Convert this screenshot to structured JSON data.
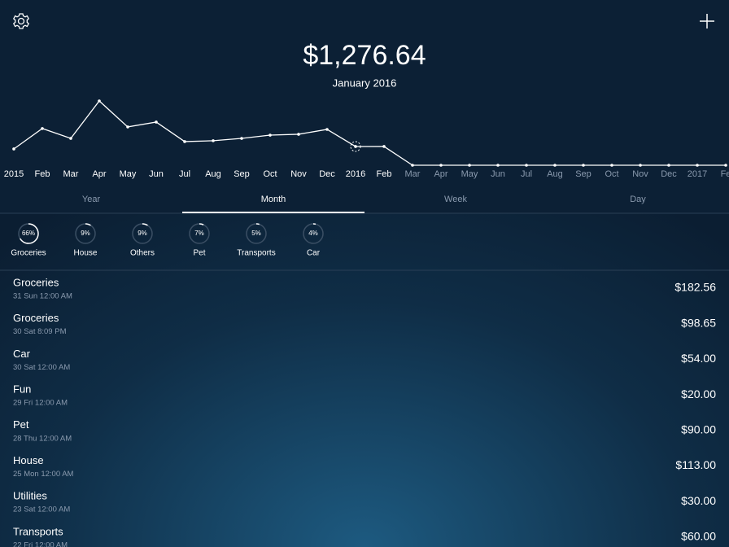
{
  "header": {
    "total": "$1,276.64",
    "period": "January 2016"
  },
  "timeline": {
    "type": "line",
    "categories": [
      "2015",
      "Feb",
      "Mar",
      "Apr",
      "May",
      "Jun",
      "Jul",
      "Aug",
      "Sep",
      "Oct",
      "Nov",
      "Dec",
      "2016",
      "Feb",
      "Mar",
      "Apr",
      "May",
      "Jun",
      "Jul",
      "Aug",
      "Sep",
      "Oct",
      "Nov",
      "Dec",
      "2017",
      "Fe"
    ],
    "values": [
      1110,
      2500,
      1830,
      4380,
      2610,
      2940,
      1610,
      1670,
      1830,
      2050,
      2110,
      2440,
      1276.64,
      1280,
      0,
      0,
      0,
      0,
      0,
      0,
      0,
      0,
      0,
      0,
      0,
      0
    ],
    "color": "#ffffff"
  },
  "tabs": [
    "Year",
    "Month",
    "Week",
    "Day"
  ],
  "categories": {
    "names": [
      "Groceries",
      "House",
      "Others",
      "Pet",
      "Transports",
      "Car"
    ],
    "values": [
      66,
      9,
      9,
      7,
      5,
      4
    ],
    "value_labels": [
      "66%",
      "9%",
      "9%",
      "7%",
      "5%",
      "4%"
    ]
  },
  "transactions": [
    {
      "name": "Groceries",
      "date": "31 Sun 12:00 AM",
      "amount": "$182.56"
    },
    {
      "name": "Groceries",
      "date": "30 Sat 8:09 PM",
      "amount": "$98.65"
    },
    {
      "name": "Car",
      "date": "30 Sat 12:00 AM",
      "amount": "$54.00"
    },
    {
      "name": "Fun",
      "date": "29 Fri 12:00 AM",
      "amount": "$20.00"
    },
    {
      "name": "Pet",
      "date": "28 Thu 12:00 AM",
      "amount": "$90.00"
    },
    {
      "name": "House",
      "date": "25 Mon 12:00 AM",
      "amount": "$113.00"
    },
    {
      "name": "Utilities",
      "date": "23 Sat 12:00 AM",
      "amount": "$30.00"
    },
    {
      "name": "Transports",
      "date": "22 Fri 12:00 AM",
      "amount": "$60.00"
    }
  ]
}
